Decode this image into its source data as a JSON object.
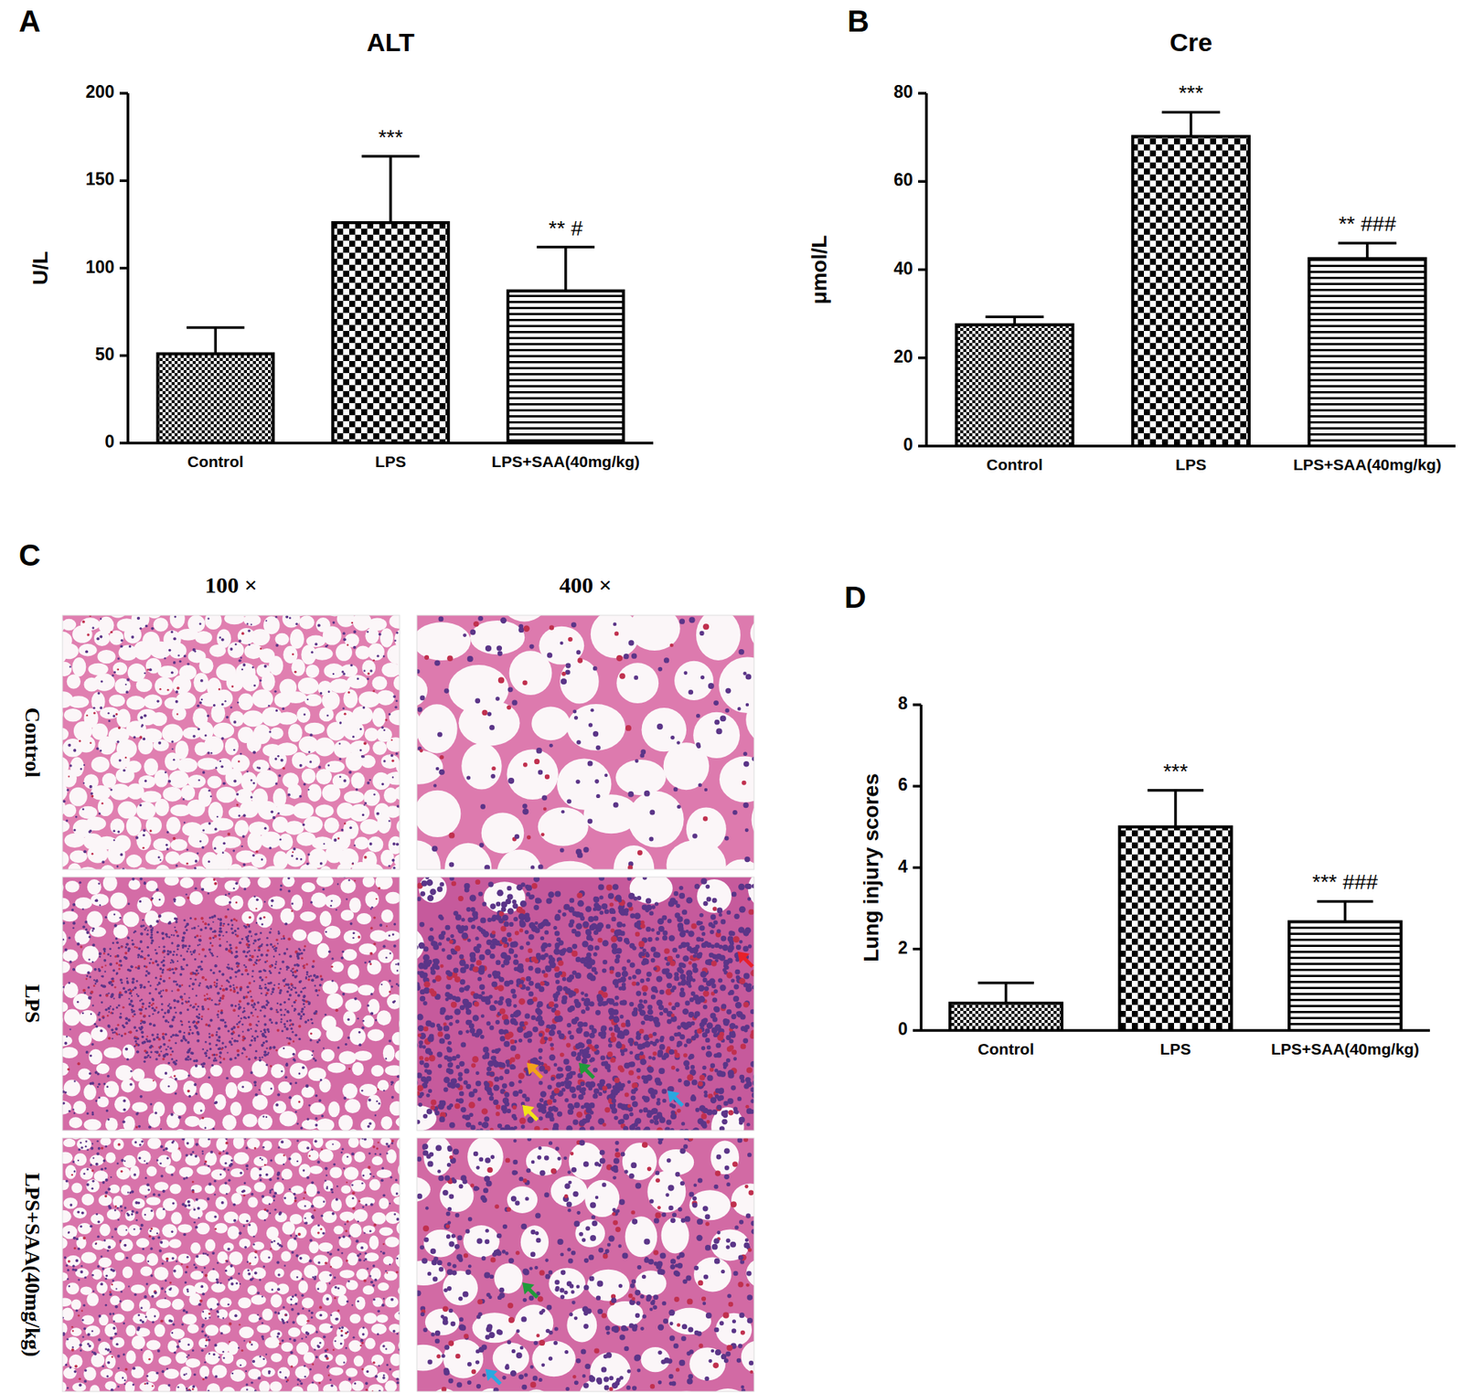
{
  "panel_labels": [
    "A",
    "B",
    "C",
    "D"
  ],
  "chart_data": [
    {
      "type": "bar",
      "title": "ALT",
      "y_label": "U/L",
      "categories": [
        "Control",
        "LPS",
        "LPS+SAA(40mg/kg)"
      ],
      "values": [
        51,
        126,
        87
      ],
      "errors": [
        15,
        38,
        25
      ],
      "annotations": [
        null,
        "***",
        "** #"
      ],
      "ylim": [
        0,
        200
      ],
      "yticks": [
        0,
        50,
        100,
        150,
        200
      ],
      "color": "#000000"
    },
    {
      "type": "bar",
      "title": "Cre",
      "y_label": "μmol/L",
      "categories": [
        "Control",
        "LPS",
        "LPS+SAA(40mg/kg)"
      ],
      "values": [
        27.5,
        70.2,
        42.5
      ],
      "errors": [
        1.8,
        5.5,
        3.5
      ],
      "annotations": [
        null,
        "***",
        "** ###"
      ],
      "ylim": [
        0,
        80
      ],
      "yticks": [
        0,
        20,
        40,
        60,
        80
      ],
      "color": "#000000"
    },
    {
      "type": "bar",
      "y_label": "Lung injury scores",
      "categories": [
        "Control",
        "LPS",
        "LPS+SAA(40mg/kg)"
      ],
      "values": [
        0.67,
        5.0,
        2.67
      ],
      "errors": [
        0.5,
        0.9,
        0.5
      ],
      "annotations": [
        null,
        "***",
        "*** ###"
      ],
      "ylim": [
        0,
        8
      ],
      "yticks": [
        0,
        2,
        4,
        6,
        8
      ],
      "color": "#000000"
    }
  ],
  "histology": {
    "columns": [
      "100 ×",
      "400 ×"
    ],
    "rows": [
      "Control",
      "LPS",
      "LPS+SAA(40mg/kg)"
    ]
  }
}
